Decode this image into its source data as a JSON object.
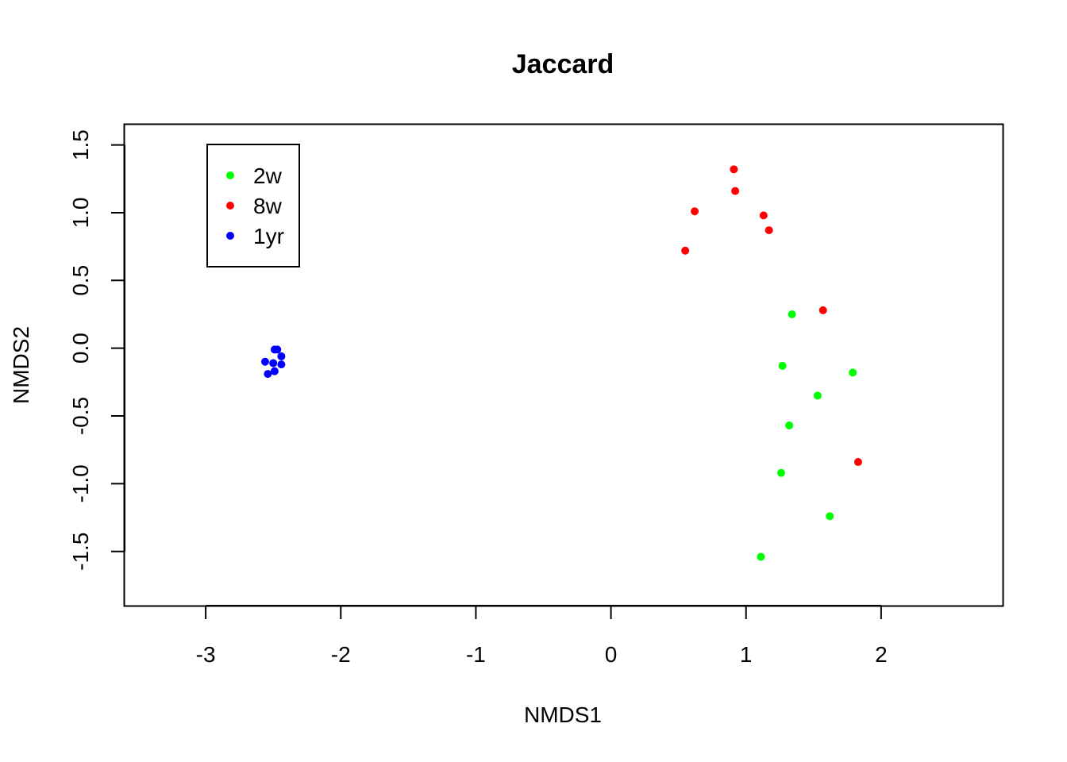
{
  "chart_data": {
    "type": "scatter",
    "title": "Jaccard",
    "xlabel": "NMDS1",
    "ylabel": "NMDS2",
    "xlim": [
      -3.6,
      2.9
    ],
    "ylim": [
      -1.9,
      1.65
    ],
    "xticks": [
      -3,
      -2,
      -1,
      0,
      1,
      2
    ],
    "yticks": [
      -1.5,
      -1.0,
      -0.5,
      0.0,
      0.5,
      1.0,
      1.5
    ],
    "xtick_labels": [
      "-3",
      "-2",
      "-1",
      "0",
      "1",
      "2"
    ],
    "ytick_labels": [
      "-1.5",
      "-1.0",
      "-0.5",
      "0.0",
      "0.5",
      "1.0",
      "1.5"
    ],
    "grid": false,
    "legend_position": "top-left",
    "series": [
      {
        "name": "2w",
        "color": "#00ff00",
        "points": [
          [
            1.34,
            0.25
          ],
          [
            1.27,
            -0.13
          ],
          [
            1.79,
            -0.18
          ],
          [
            1.53,
            -0.35
          ],
          [
            1.32,
            -0.57
          ],
          [
            1.26,
            -0.92
          ],
          [
            1.62,
            -1.24
          ],
          [
            1.11,
            -1.54
          ]
        ]
      },
      {
        "name": "8w",
        "color": "#ff0000",
        "points": [
          [
            0.91,
            1.32
          ],
          [
            0.92,
            1.16
          ],
          [
            0.62,
            1.01
          ],
          [
            1.13,
            0.98
          ],
          [
            1.17,
            0.87
          ],
          [
            0.55,
            0.72
          ],
          [
            1.57,
            0.28
          ],
          [
            1.83,
            -0.84
          ]
        ]
      },
      {
        "name": "1yr",
        "color": "#0000ff",
        "points": [
          [
            -2.49,
            -0.01
          ],
          [
            -2.47,
            -0.01
          ],
          [
            -2.44,
            -0.06
          ],
          [
            -2.56,
            -0.1
          ],
          [
            -2.5,
            -0.11
          ],
          [
            -2.44,
            -0.12
          ],
          [
            -2.49,
            -0.17
          ],
          [
            -2.54,
            -0.19
          ]
        ]
      }
    ]
  }
}
